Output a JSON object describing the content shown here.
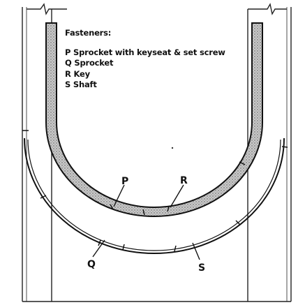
{
  "legend": {
    "title": "Fasteners:",
    "items": [
      {
        "letter": "P",
        "text": "Sprocket with keyseat & set screw"
      },
      {
        "letter": "Q",
        "text": "Sprocket"
      },
      {
        "letter": "R",
        "text": "Key"
      },
      {
        "letter": "S",
        "text": "Shaft"
      }
    ]
  },
  "callouts": {
    "p": "P",
    "r": "R",
    "q": "Q",
    "s": "S"
  }
}
